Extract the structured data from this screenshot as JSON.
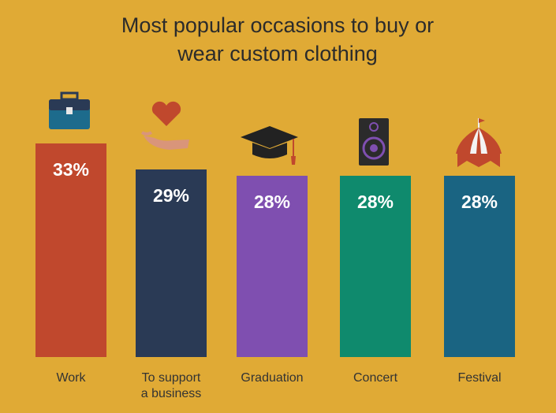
{
  "chart_data": {
    "type": "bar",
    "title": "Most popular occasions to buy or wear custom clothing",
    "categories": [
      "Work",
      "To support a business",
      "Graduation",
      "Concert",
      "Festival"
    ],
    "values": [
      33,
      29,
      28,
      28,
      28
    ],
    "value_labels": [
      "33%",
      "29%",
      "28%",
      "28%",
      "28%"
    ],
    "colors": [
      "#c0482d",
      "#2a3a55",
      "#7f4fb0",
      "#0f8a6d",
      "#1a6482"
    ]
  }
}
